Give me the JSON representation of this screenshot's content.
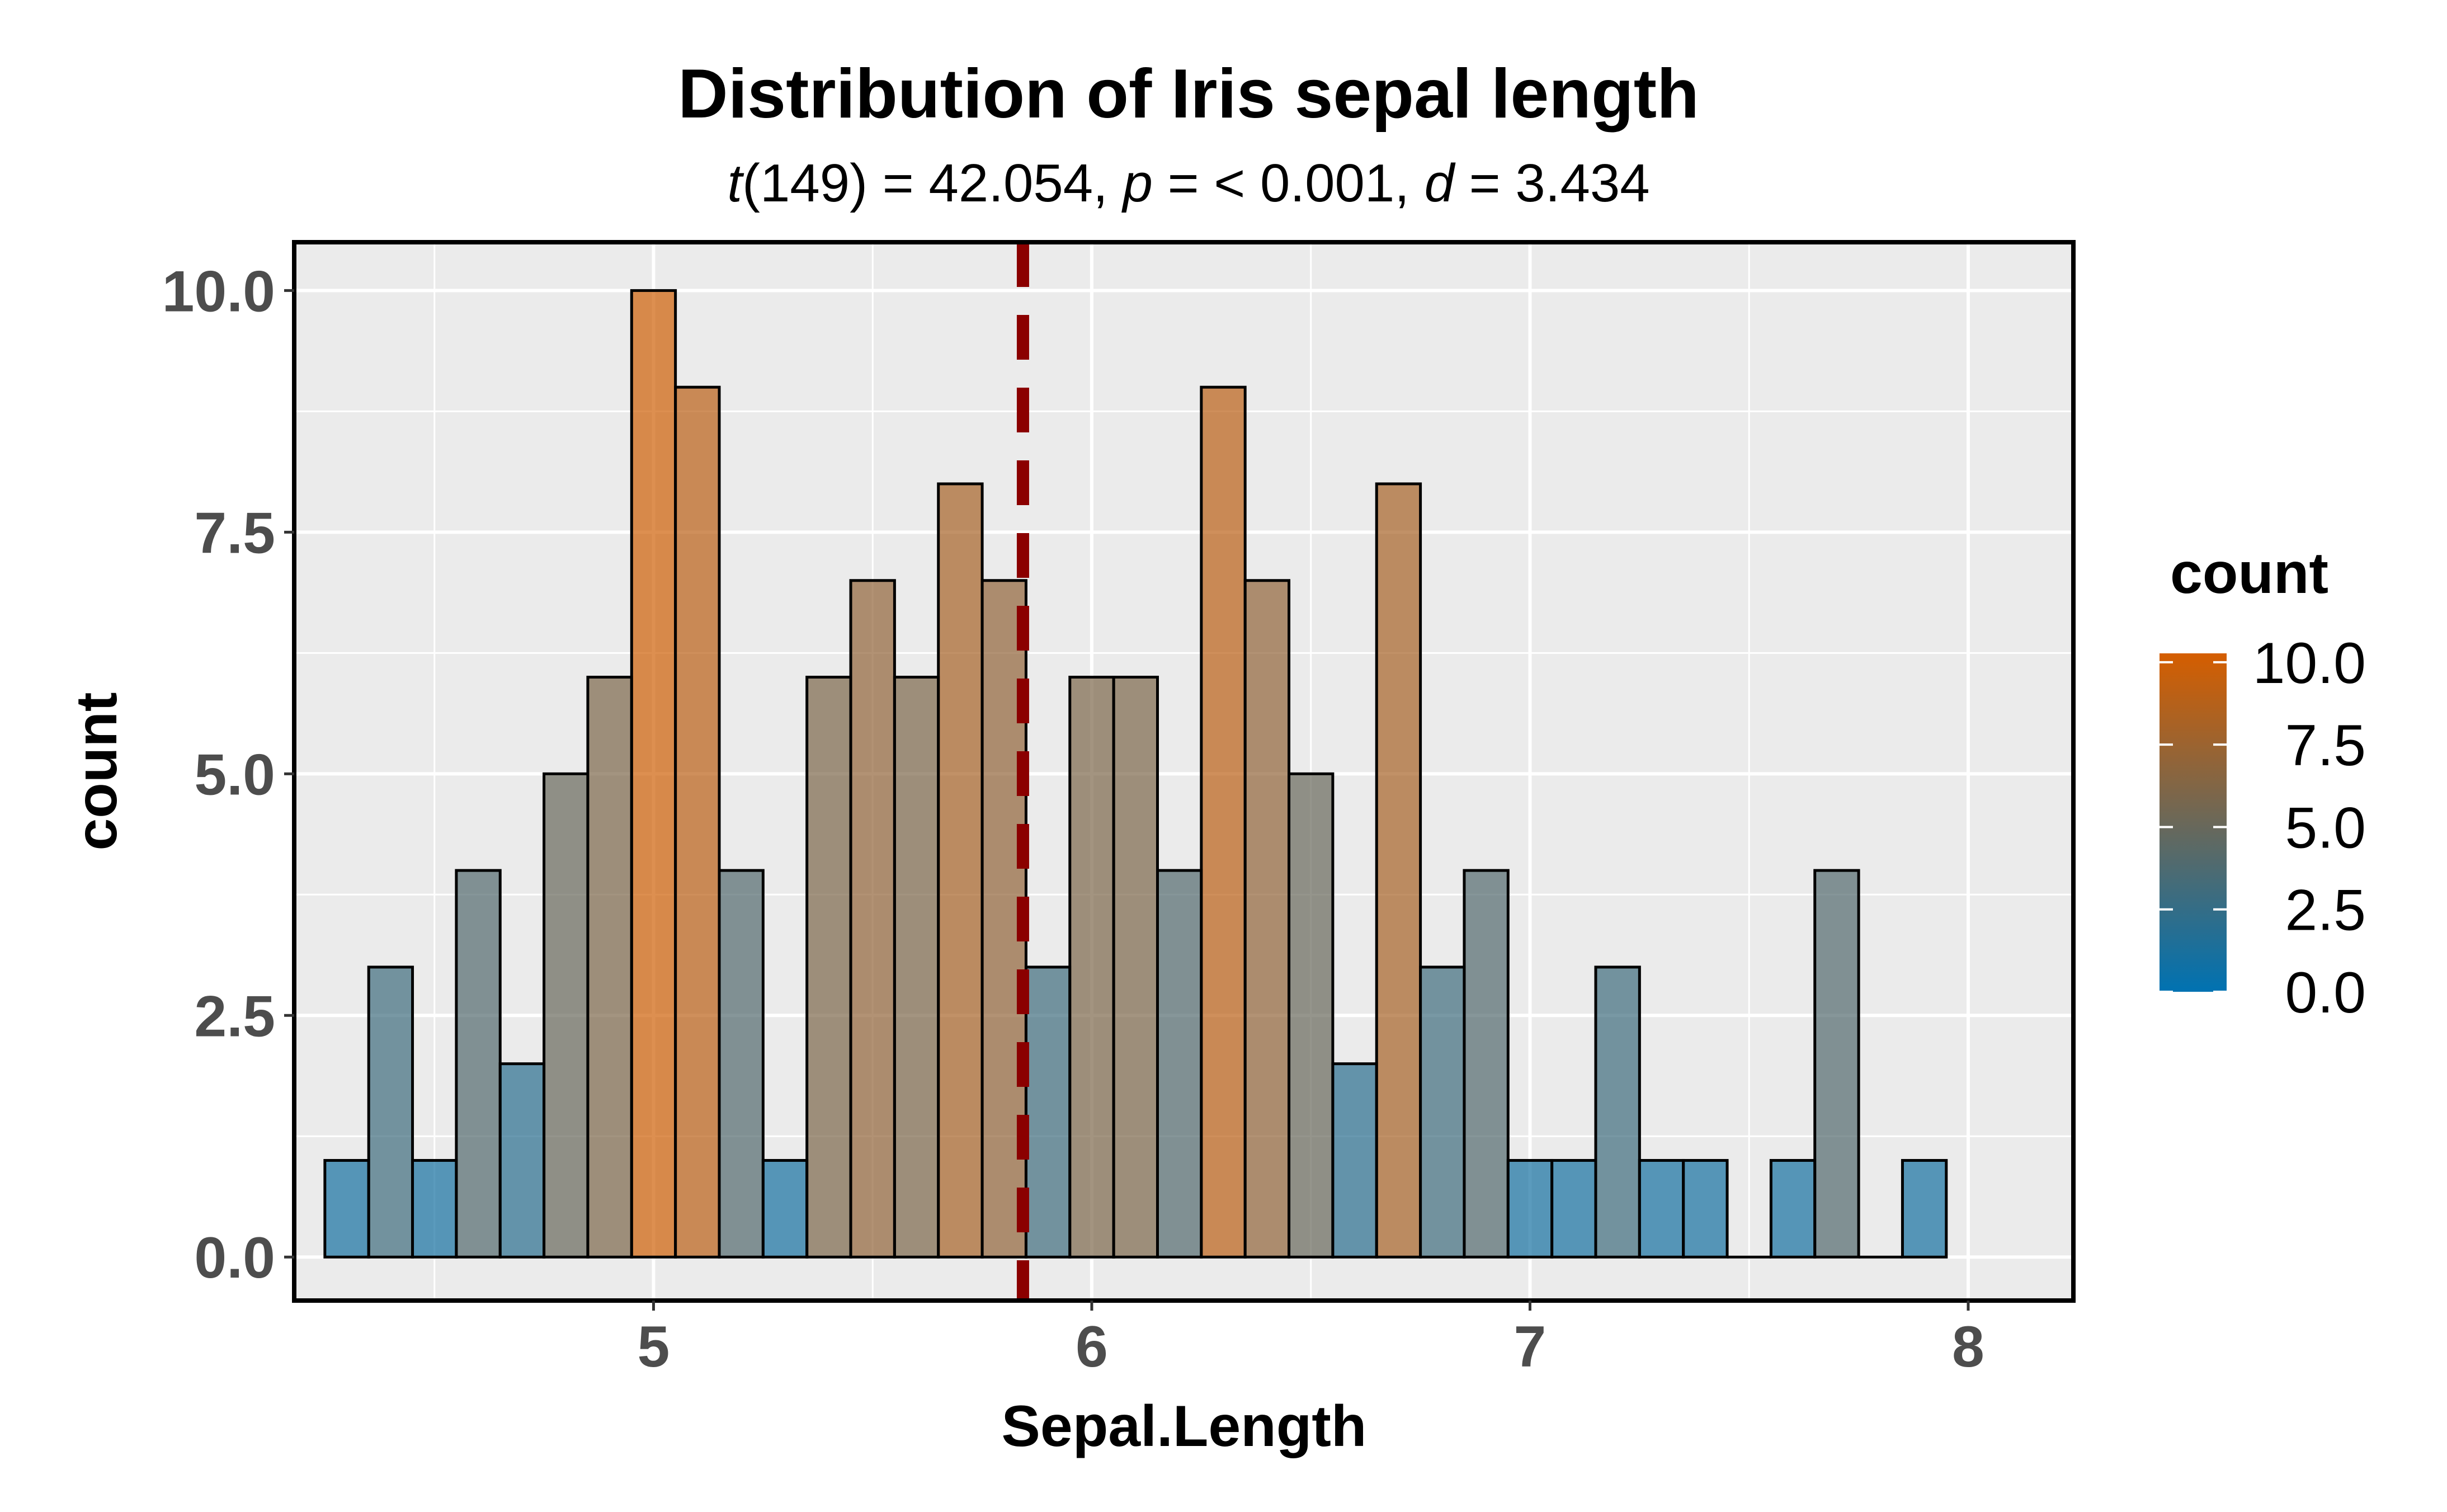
{
  "chart_data": {
    "type": "bar",
    "title": "Distribution of Iris sepal length",
    "subtitle": {
      "t_symbol": "t",
      "t_value": "(149) = 42.054, ",
      "p_symbol": "p",
      "p_value": " = < 0.001, ",
      "d_symbol": "d",
      "d_value": " = 3.434"
    },
    "xlabel": "Sepal.Length",
    "ylabel": "count",
    "xlim": [
      4.18,
      8.24
    ],
    "ylim": [
      -0.45,
      10.5
    ],
    "x_ticks": [
      5,
      6,
      7,
      8
    ],
    "x_tick_labels": [
      "5",
      "6",
      "7",
      "8"
    ],
    "y_ticks": [
      0,
      2.5,
      5,
      7.5,
      10
    ],
    "y_tick_labels": [
      "0.0",
      "2.5",
      "5.0",
      "7.5",
      "10.0"
    ],
    "bin_width": 0.1,
    "bins": [
      {
        "x": 4.3,
        "count": 1
      },
      {
        "x": 4.4,
        "count": 3
      },
      {
        "x": 4.5,
        "count": 1
      },
      {
        "x": 4.6,
        "count": 4
      },
      {
        "x": 4.7,
        "count": 2
      },
      {
        "x": 4.8,
        "count": 5
      },
      {
        "x": 4.9,
        "count": 6
      },
      {
        "x": 5.0,
        "count": 10
      },
      {
        "x": 5.1,
        "count": 9
      },
      {
        "x": 5.2,
        "count": 4
      },
      {
        "x": 5.3,
        "count": 1
      },
      {
        "x": 5.4,
        "count": 6
      },
      {
        "x": 5.5,
        "count": 7
      },
      {
        "x": 5.6,
        "count": 6
      },
      {
        "x": 5.7,
        "count": 8
      },
      {
        "x": 5.8,
        "count": 7
      },
      {
        "x": 5.9,
        "count": 3
      },
      {
        "x": 6.0,
        "count": 6
      },
      {
        "x": 6.1,
        "count": 6
      },
      {
        "x": 6.2,
        "count": 4
      },
      {
        "x": 6.3,
        "count": 9
      },
      {
        "x": 6.4,
        "count": 7
      },
      {
        "x": 6.5,
        "count": 5
      },
      {
        "x": 6.6,
        "count": 2
      },
      {
        "x": 6.7,
        "count": 8
      },
      {
        "x": 6.8,
        "count": 3
      },
      {
        "x": 6.9,
        "count": 4
      },
      {
        "x": 7.0,
        "count": 1
      },
      {
        "x": 7.1,
        "count": 1
      },
      {
        "x": 7.2,
        "count": 3
      },
      {
        "x": 7.3,
        "count": 1
      },
      {
        "x": 7.4,
        "count": 1
      },
      {
        "x": 7.5,
        "count": 0
      },
      {
        "x": 7.6,
        "count": 1
      },
      {
        "x": 7.7,
        "count": 4
      },
      {
        "x": 7.8,
        "count": 0
      },
      {
        "x": 7.9,
        "count": 1
      }
    ],
    "mean_line": {
      "x": 5.843,
      "color": "#8b0000",
      "style": "dashed"
    },
    "grid": true,
    "panel_background": "#ebebeb",
    "legend": {
      "title": "count",
      "position": "right",
      "type": "colorbar",
      "labels": [
        "10.0",
        "7.5",
        "5.0",
        "2.5",
        "0.0"
      ],
      "values": [
        10,
        7.5,
        5,
        2.5,
        0
      ],
      "low_color": "#0072b2",
      "high_color": "#d55e00",
      "range": [
        0,
        10.27
      ]
    },
    "bar_opacity": 0.7
  }
}
